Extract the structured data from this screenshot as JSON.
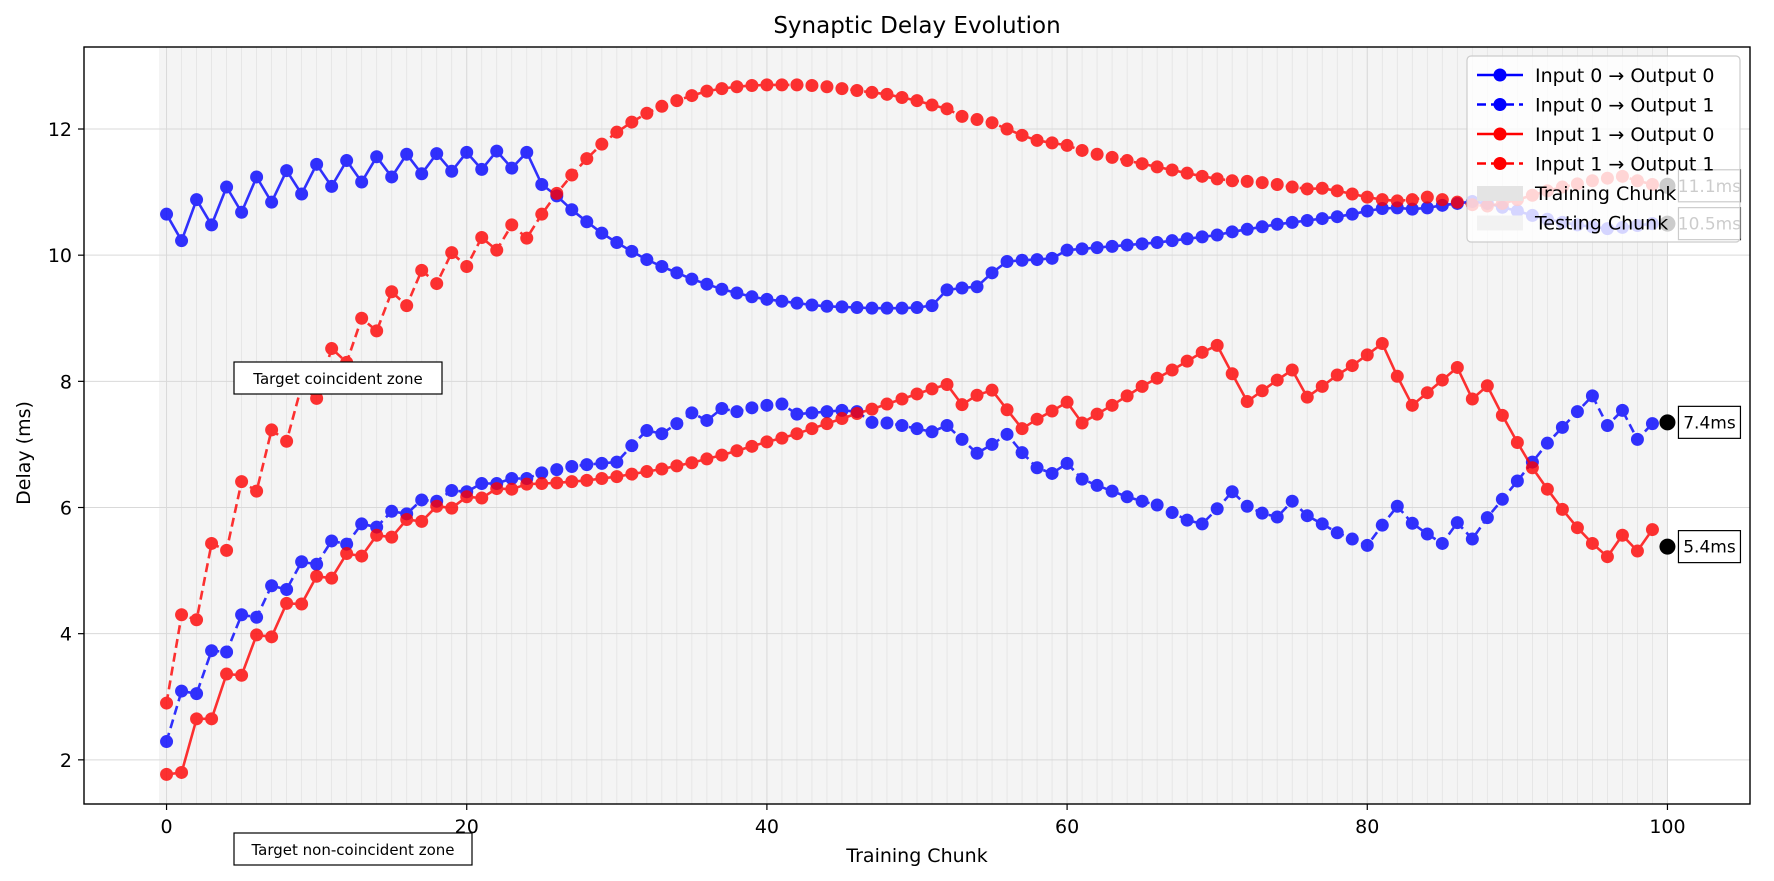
{
  "chart_data": {
    "type": "line",
    "title": "Synaptic Delay Evolution",
    "xlabel": "Training Chunk",
    "ylabel": "Delay (ms)",
    "xlim": [
      -5.5,
      105.5
    ],
    "ylim": [
      1.3,
      13.3
    ],
    "xticks": [
      0,
      20,
      40,
      60,
      80,
      100
    ],
    "yticks": [
      2,
      4,
      6,
      8,
      10,
      12
    ],
    "grid": true,
    "legend_position": "top-right",
    "background_bands": {
      "x_start": 0,
      "x_end": 100,
      "color": "#f0f0f0"
    },
    "series": [
      {
        "name": "Input 0 → Output 0",
        "color": "#0000ff",
        "linestyle": "solid",
        "x": [
          0,
          1,
          2,
          3,
          4,
          5,
          6,
          7,
          8,
          9,
          10,
          11,
          12,
          13,
          14,
          15,
          16,
          17,
          18,
          19,
          20,
          21,
          22,
          23,
          24,
          25,
          26,
          27,
          28,
          29,
          30,
          31,
          32,
          33,
          34,
          35,
          36,
          37,
          38,
          39,
          40,
          41,
          42,
          43,
          44,
          45,
          46,
          47,
          48,
          49,
          50,
          51,
          52,
          53,
          54,
          55,
          56,
          57,
          58,
          59,
          60,
          61,
          62,
          63,
          64,
          65,
          66,
          67,
          68,
          69,
          70,
          71,
          72,
          73,
          74,
          75,
          76,
          77,
          78,
          79,
          80,
          81,
          82,
          83,
          84,
          85,
          86,
          87,
          88,
          89,
          90,
          91,
          92,
          93,
          94,
          95,
          96,
          97,
          98,
          99
        ],
        "y": [
          10.65,
          10.23,
          10.88,
          10.48,
          11.08,
          10.68,
          11.24,
          10.84,
          11.34,
          10.97,
          11.44,
          11.09,
          11.5,
          11.16,
          11.56,
          11.24,
          11.6,
          11.29,
          11.61,
          11.33,
          11.63,
          11.36,
          11.65,
          11.38,
          11.63,
          11.12,
          10.94,
          10.72,
          10.53,
          10.35,
          10.2,
          10.06,
          9.93,
          9.82,
          9.72,
          9.62,
          9.54,
          9.46,
          9.4,
          9.34,
          9.3,
          9.27,
          9.24,
          9.21,
          9.19,
          9.18,
          9.17,
          9.16,
          9.16,
          9.16,
          9.17,
          9.2,
          9.45,
          9.48,
          9.5,
          9.72,
          9.9,
          9.92,
          9.93,
          9.95,
          10.08,
          10.1,
          10.12,
          10.14,
          10.16,
          10.18,
          10.2,
          10.23,
          10.26,
          10.29,
          10.32,
          10.37,
          10.41,
          10.45,
          10.49,
          10.52,
          10.55,
          10.58,
          10.61,
          10.65,
          10.7,
          10.74,
          10.75,
          10.73,
          10.75,
          10.79,
          10.82,
          10.85,
          10.82,
          10.76,
          10.7,
          10.63,
          10.57,
          10.52,
          10.48,
          10.45,
          10.42,
          10.44,
          10.47,
          10.5
        ]
      },
      {
        "name": "Input 0 → Output 1",
        "color": "#0000ff",
        "linestyle": "dashed",
        "x": [
          0,
          1,
          2,
          3,
          4,
          5,
          6,
          7,
          8,
          9,
          10,
          11,
          12,
          13,
          14,
          15,
          16,
          17,
          18,
          19,
          20,
          21,
          22,
          23,
          24,
          25,
          26,
          27,
          28,
          29,
          30,
          31,
          32,
          33,
          34,
          35,
          36,
          37,
          38,
          39,
          40,
          41,
          42,
          43,
          44,
          45,
          46,
          47,
          48,
          49,
          50,
          51,
          52,
          53,
          54,
          55,
          56,
          57,
          58,
          59,
          60,
          61,
          62,
          63,
          64,
          65,
          66,
          67,
          68,
          69,
          70,
          71,
          72,
          73,
          74,
          75,
          76,
          77,
          78,
          79,
          80,
          81,
          82,
          83,
          84,
          85,
          86,
          87,
          88,
          89,
          90,
          91,
          92,
          93,
          94,
          95,
          96,
          97,
          98,
          99
        ],
        "y": [
          2.29,
          3.09,
          3.05,
          3.73,
          3.71,
          4.3,
          4.26,
          4.76,
          4.7,
          5.14,
          5.1,
          5.47,
          5.42,
          5.74,
          5.69,
          5.94,
          5.9,
          6.12,
          6.1,
          6.27,
          6.25,
          6.38,
          6.38,
          6.46,
          6.46,
          6.55,
          6.6,
          6.65,
          6.68,
          6.7,
          6.72,
          6.98,
          7.22,
          7.17,
          7.33,
          7.5,
          7.38,
          7.57,
          7.52,
          7.58,
          7.62,
          7.64,
          7.48,
          7.5,
          7.52,
          7.54,
          7.52,
          7.35,
          7.34,
          7.3,
          7.25,
          7.2,
          7.3,
          7.08,
          6.86,
          7.0,
          7.16,
          6.87,
          6.63,
          6.54,
          6.7,
          6.45,
          6.35,
          6.26,
          6.17,
          6.1,
          6.04,
          5.92,
          5.8,
          5.74,
          5.98,
          6.25,
          6.02,
          5.91,
          5.85,
          6.1,
          5.87,
          5.74,
          5.6,
          5.5,
          5.4,
          5.72,
          6.02,
          5.75,
          5.58,
          5.43,
          5.76,
          5.5,
          5.84,
          6.13,
          6.42,
          6.72,
          7.02,
          7.27,
          7.52,
          7.77,
          7.3,
          7.54,
          7.08,
          7.33
        ]
      },
      {
        "name": "Input 1 → Output 0",
        "color": "#ff0000",
        "linestyle": "solid",
        "x": [
          0,
          1,
          2,
          3,
          4,
          5,
          6,
          7,
          8,
          9,
          10,
          11,
          12,
          13,
          14,
          15,
          16,
          17,
          18,
          19,
          20,
          21,
          22,
          23,
          24,
          25,
          26,
          27,
          28,
          29,
          30,
          31,
          32,
          33,
          34,
          35,
          36,
          37,
          38,
          39,
          40,
          41,
          42,
          43,
          44,
          45,
          46,
          47,
          48,
          49,
          50,
          51,
          52,
          53,
          54,
          55,
          56,
          57,
          58,
          59,
          60,
          61,
          62,
          63,
          64,
          65,
          66,
          67,
          68,
          69,
          70,
          71,
          72,
          73,
          74,
          75,
          76,
          77,
          78,
          79,
          80,
          81,
          82,
          83,
          84,
          85,
          86,
          87,
          88,
          89,
          90,
          91,
          92,
          93,
          94,
          95,
          96,
          97,
          98,
          99
        ],
        "y": [
          1.77,
          1.8,
          2.65,
          2.65,
          3.36,
          3.34,
          3.98,
          3.95,
          4.48,
          4.47,
          4.91,
          4.88,
          5.27,
          5.23,
          5.56,
          5.53,
          5.81,
          5.78,
          6.02,
          5.99,
          6.17,
          6.15,
          6.3,
          6.29,
          6.37,
          6.38,
          6.39,
          6.41,
          6.43,
          6.46,
          6.49,
          6.53,
          6.57,
          6.61,
          6.66,
          6.71,
          6.77,
          6.83,
          6.9,
          6.97,
          7.04,
          7.1,
          7.17,
          7.25,
          7.33,
          7.41,
          7.49,
          7.56,
          7.64,
          7.72,
          7.8,
          7.88,
          7.95,
          7.63,
          7.78,
          7.86,
          7.55,
          7.25,
          7.4,
          7.53,
          7.67,
          7.34,
          7.48,
          7.62,
          7.77,
          7.92,
          8.05,
          8.18,
          8.32,
          8.46,
          8.57,
          8.12,
          7.68,
          7.85,
          8.02,
          8.18,
          7.75,
          7.92,
          8.1,
          8.25,
          8.42,
          8.6,
          8.08,
          7.62,
          7.82,
          8.02,
          8.22,
          7.72,
          7.93,
          7.46,
          7.03,
          6.63,
          6.29,
          5.97,
          5.68,
          5.43,
          5.22,
          5.56,
          5.31,
          5.65
        ]
      },
      {
        "name": "Input 1 → Output 1",
        "color": "#ff0000",
        "linestyle": "dashed",
        "x": [
          0,
          1,
          2,
          3,
          4,
          5,
          6,
          7,
          8,
          9,
          10,
          11,
          12,
          13,
          14,
          15,
          16,
          17,
          18,
          19,
          20,
          21,
          22,
          23,
          24,
          25,
          26,
          27,
          28,
          29,
          30,
          31,
          32,
          33,
          34,
          35,
          36,
          37,
          38,
          39,
          40,
          41,
          42,
          43,
          44,
          45,
          46,
          47,
          48,
          49,
          50,
          51,
          52,
          53,
          54,
          55,
          56,
          57,
          58,
          59,
          60,
          61,
          62,
          63,
          64,
          65,
          66,
          67,
          68,
          69,
          70,
          71,
          72,
          73,
          74,
          75,
          76,
          77,
          78,
          79,
          80,
          81,
          82,
          83,
          84,
          85,
          86,
          87,
          88,
          89,
          90,
          91,
          92,
          93,
          94,
          95,
          96,
          97,
          98,
          99
        ],
        "y": [
          2.9,
          4.3,
          4.22,
          5.43,
          5.32,
          6.41,
          6.26,
          7.23,
          7.05,
          7.93,
          7.73,
          8.52,
          8.3,
          9.0,
          8.8,
          9.42,
          9.2,
          9.76,
          9.55,
          10.04,
          9.82,
          10.28,
          10.08,
          10.48,
          10.27,
          10.65,
          10.98,
          11.27,
          11.53,
          11.76,
          11.95,
          12.11,
          12.25,
          12.36,
          12.45,
          12.53,
          12.6,
          12.64,
          12.67,
          12.69,
          12.7,
          12.7,
          12.7,
          12.69,
          12.67,
          12.64,
          12.61,
          12.58,
          12.55,
          12.5,
          12.45,
          12.38,
          12.32,
          12.2,
          12.15,
          12.1,
          12.0,
          11.9,
          11.82,
          11.78,
          11.74,
          11.66,
          11.6,
          11.55,
          11.5,
          11.45,
          11.4,
          11.35,
          11.3,
          11.25,
          11.21,
          11.18,
          11.17,
          11.15,
          11.12,
          11.08,
          11.05,
          11.06,
          11.02,
          10.97,
          10.92,
          10.88,
          10.86,
          10.88,
          10.92,
          10.88,
          10.84,
          10.8,
          10.78,
          10.82,
          10.88,
          10.95,
          11.02,
          11.08,
          11.13,
          11.18,
          11.22,
          11.25,
          11.18,
          11.12
        ]
      }
    ],
    "final_values": [
      {
        "x": 100,
        "y": 11.1,
        "label": "11.1ms"
      },
      {
        "x": 100,
        "y": 10.5,
        "label": "10.5ms"
      },
      {
        "x": 100,
        "y": 7.35,
        "label": "7.4ms"
      },
      {
        "x": 100,
        "y": 5.38,
        "label": "5.4ms"
      }
    ],
    "legend": {
      "entries": [
        {
          "label": "Input 0 → Output 0"
        },
        {
          "label": "Input 0 → Output 1"
        },
        {
          "label": "Input 1 → Output 0"
        },
        {
          "label": "Input 1 → Output 1"
        },
        {
          "label": "Training Chunk"
        },
        {
          "label": "Testing Chunk"
        }
      ]
    },
    "annotations": [
      {
        "text": "Target coincident zone"
      },
      {
        "text": "Target non-coincident zone"
      }
    ]
  }
}
